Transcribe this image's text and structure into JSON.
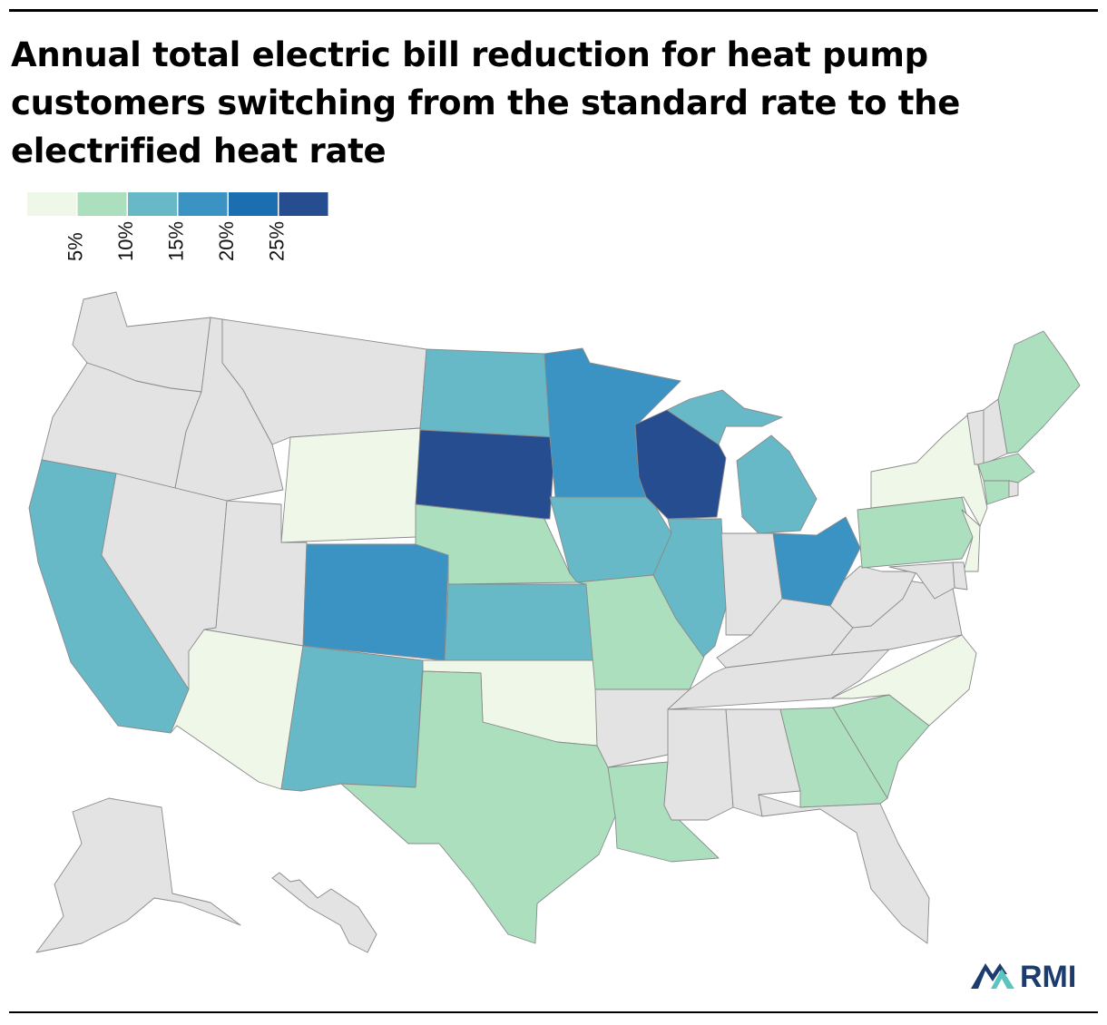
{
  "chart_data": {
    "type": "choropleth",
    "title": "Annual total electric bill reduction for heat pump customers switching from the standard rate to the electrified heat rate",
    "legend": {
      "bins": [
        {
          "range": "<5%",
          "color": "#eff8e8"
        },
        {
          "range": "5-10%",
          "color": "#abdfbe"
        },
        {
          "range": "10-15%",
          "color": "#67b9c7"
        },
        {
          "range": "15-20%",
          "color": "#3b93c3"
        },
        {
          "range": "20-25%",
          "color": "#1b6fb0"
        },
        {
          "range": ">25%",
          "color": "#254d8f"
        }
      ],
      "tick_labels": [
        "5%",
        "10%",
        "15%",
        "20%",
        "25%"
      ]
    },
    "no_data_color": "#e3e3e3",
    "state_bins": {
      "WY": 0,
      "AZ": 0,
      "OK": 0,
      "NY": 0,
      "NJ": 0,
      "NC": 0,
      "NE": 1,
      "TX": 1,
      "MO": 1,
      "LA": 1,
      "GA": 1,
      "SC": 1,
      "PA": 1,
      "ME": 1,
      "MA": 1,
      "CT": 1,
      "CA": 2,
      "ND": 2,
      "IA": 2,
      "KS": 2,
      "NM": 2,
      "IL": 2,
      "MI": 2,
      "CO": 3,
      "MN": 3,
      "OH": 3,
      "SD": 5,
      "WI": 5
    },
    "no_data_states": [
      "WA",
      "OR",
      "ID",
      "MT",
      "NV",
      "UT",
      "AR",
      "MS",
      "AL",
      "FL",
      "TN",
      "KY",
      "IN",
      "WV",
      "VA",
      "MD",
      "DE",
      "VT",
      "NH",
      "RI",
      "AK",
      "HI"
    ]
  },
  "brand": {
    "logo_text": "RMI",
    "colors": {
      "dark": "#1d3c6e",
      "teal": "#5bc4bf"
    }
  }
}
